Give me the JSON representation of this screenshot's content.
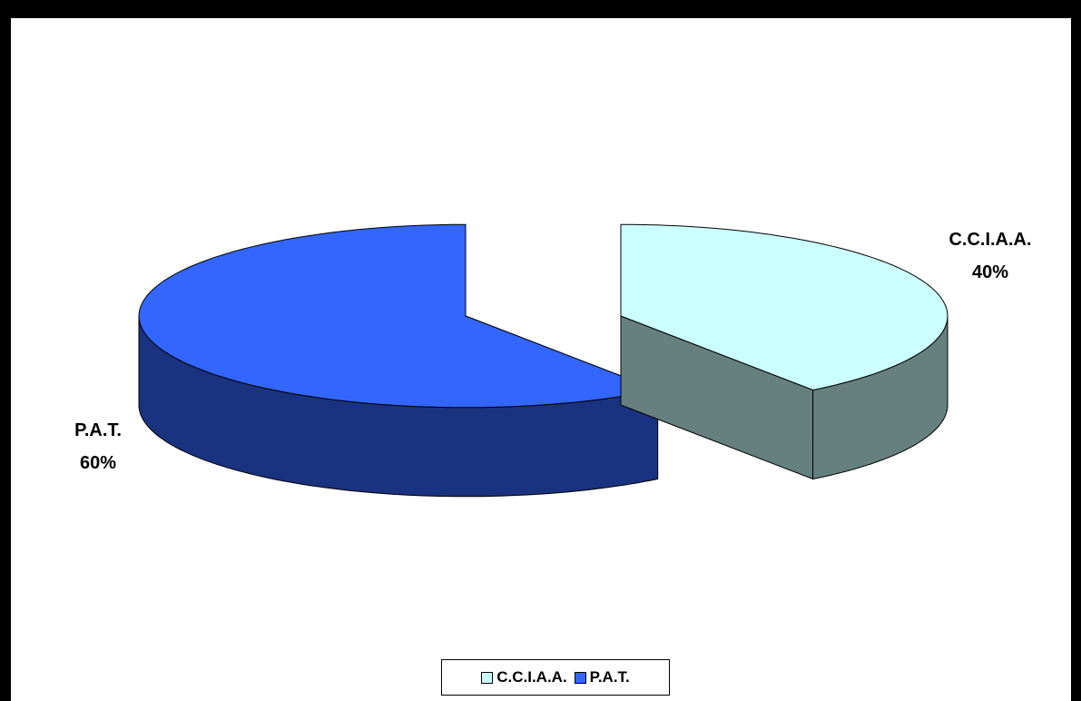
{
  "chart_data": {
    "type": "pie",
    "style": "3d-exploded",
    "slices": [
      {
        "label": "C.C.I.A.A.",
        "value": 40,
        "display": "40%",
        "color": "#ccffff",
        "side_color": "#668080"
      },
      {
        "label": "P.A.T.",
        "value": 60,
        "display": "60%",
        "color": "#3366ff",
        "side_color": "#1a3380"
      }
    ],
    "legend": {
      "placement": "bottom-center",
      "items": [
        "C.C.I.A.A.",
        "P.A.T."
      ]
    },
    "background": "#ffffff",
    "border_color": "#000000"
  }
}
